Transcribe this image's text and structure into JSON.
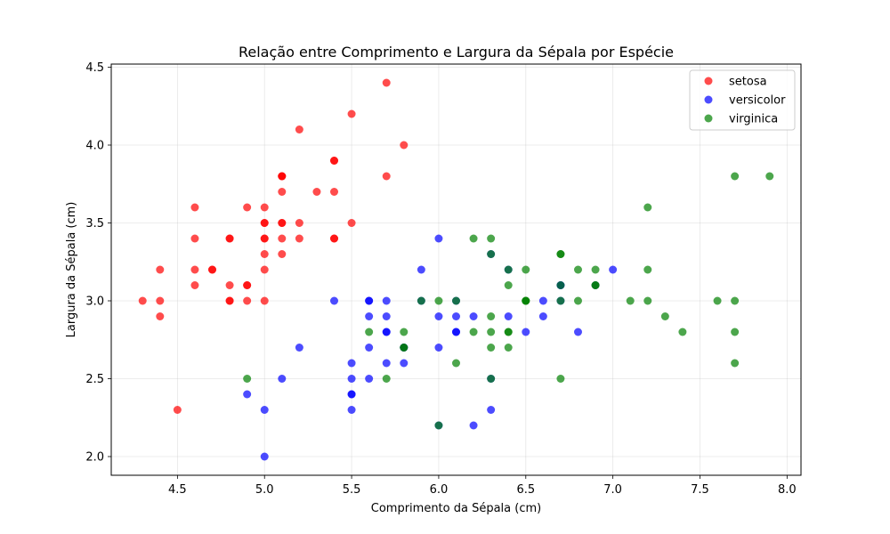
{
  "chart_data": {
    "type": "scatter",
    "title": "Relação entre Comprimento e Largura da Sépala por Espécie",
    "xlabel": "Comprimento da Sépala (cm)",
    "ylabel": "Largura da Sépala (cm)",
    "xlim": [
      4.12,
      8.08
    ],
    "ylim": [
      1.88,
      4.52
    ],
    "xticks": [
      "4.5",
      "5.0",
      "5.5",
      "6.0",
      "6.5",
      "7.0",
      "7.5",
      "8.0"
    ],
    "yticks": [
      "2.0",
      "2.5",
      "3.0",
      "3.5",
      "4.0",
      "4.5"
    ],
    "grid": true,
    "legend_position": "top-right",
    "series": [
      {
        "name": "setosa",
        "color": "#ff0000",
        "points": [
          [
            5.1,
            3.5
          ],
          [
            4.9,
            3.0
          ],
          [
            4.7,
            3.2
          ],
          [
            4.6,
            3.1
          ],
          [
            5.0,
            3.6
          ],
          [
            5.4,
            3.9
          ],
          [
            4.6,
            3.4
          ],
          [
            5.0,
            3.4
          ],
          [
            4.4,
            2.9
          ],
          [
            4.9,
            3.1
          ],
          [
            5.4,
            3.7
          ],
          [
            4.8,
            3.4
          ],
          [
            4.8,
            3.0
          ],
          [
            4.3,
            3.0
          ],
          [
            5.8,
            4.0
          ],
          [
            5.7,
            4.4
          ],
          [
            5.4,
            3.9
          ],
          [
            5.1,
            3.5
          ],
          [
            5.7,
            3.8
          ],
          [
            5.1,
            3.8
          ],
          [
            5.4,
            3.4
          ],
          [
            5.1,
            3.7
          ],
          [
            4.6,
            3.6
          ],
          [
            5.1,
            3.3
          ],
          [
            4.8,
            3.4
          ],
          [
            5.0,
            3.0
          ],
          [
            5.0,
            3.4
          ],
          [
            5.2,
            3.5
          ],
          [
            5.2,
            3.4
          ],
          [
            4.7,
            3.2
          ],
          [
            4.8,
            3.1
          ],
          [
            5.4,
            3.4
          ],
          [
            5.2,
            4.1
          ],
          [
            5.5,
            4.2
          ],
          [
            4.9,
            3.1
          ],
          [
            5.0,
            3.2
          ],
          [
            5.5,
            3.5
          ],
          [
            4.9,
            3.6
          ],
          [
            4.4,
            3.0
          ],
          [
            5.1,
            3.4
          ],
          [
            5.0,
            3.5
          ],
          [
            4.5,
            2.3
          ],
          [
            4.4,
            3.2
          ],
          [
            5.0,
            3.5
          ],
          [
            5.1,
            3.8
          ],
          [
            4.8,
            3.0
          ],
          [
            5.1,
            3.8
          ],
          [
            4.6,
            3.2
          ],
          [
            5.3,
            3.7
          ],
          [
            5.0,
            3.3
          ]
        ]
      },
      {
        "name": "versicolor",
        "color": "#0000ff",
        "points": [
          [
            7.0,
            3.2
          ],
          [
            6.4,
            3.2
          ],
          [
            6.9,
            3.1
          ],
          [
            5.5,
            2.3
          ],
          [
            6.5,
            2.8
          ],
          [
            5.7,
            2.8
          ],
          [
            6.3,
            3.3
          ],
          [
            4.9,
            2.4
          ],
          [
            6.6,
            2.9
          ],
          [
            5.2,
            2.7
          ],
          [
            5.0,
            2.0
          ],
          [
            5.9,
            3.0
          ],
          [
            6.0,
            2.2
          ],
          [
            6.1,
            2.9
          ],
          [
            5.6,
            2.9
          ],
          [
            6.7,
            3.1
          ],
          [
            5.6,
            3.0
          ],
          [
            5.8,
            2.7
          ],
          [
            6.2,
            2.2
          ],
          [
            5.6,
            2.5
          ],
          [
            5.9,
            3.2
          ],
          [
            6.1,
            2.8
          ],
          [
            6.3,
            2.5
          ],
          [
            6.1,
            2.8
          ],
          [
            6.4,
            2.9
          ],
          [
            6.6,
            3.0
          ],
          [
            6.8,
            2.8
          ],
          [
            6.7,
            3.0
          ],
          [
            6.0,
            2.9
          ],
          [
            5.7,
            2.6
          ],
          [
            5.5,
            2.4
          ],
          [
            5.5,
            2.4
          ],
          [
            5.8,
            2.7
          ],
          [
            6.0,
            2.7
          ],
          [
            5.4,
            3.0
          ],
          [
            6.0,
            3.4
          ],
          [
            6.7,
            3.1
          ],
          [
            6.3,
            2.3
          ],
          [
            5.6,
            3.0
          ],
          [
            5.5,
            2.5
          ],
          [
            5.5,
            2.6
          ],
          [
            6.1,
            3.0
          ],
          [
            5.8,
            2.6
          ],
          [
            5.0,
            2.3
          ],
          [
            5.6,
            2.7
          ],
          [
            5.7,
            3.0
          ],
          [
            5.7,
            2.9
          ],
          [
            6.2,
            2.9
          ],
          [
            5.1,
            2.5
          ],
          [
            5.7,
            2.8
          ]
        ]
      },
      {
        "name": "virginica",
        "color": "#008000",
        "points": [
          [
            6.3,
            3.3
          ],
          [
            5.8,
            2.7
          ],
          [
            7.1,
            3.0
          ],
          [
            6.3,
            2.9
          ],
          [
            6.5,
            3.0
          ],
          [
            7.6,
            3.0
          ],
          [
            4.9,
            2.5
          ],
          [
            7.3,
            2.9
          ],
          [
            6.7,
            2.5
          ],
          [
            7.2,
            3.6
          ],
          [
            6.5,
            3.2
          ],
          [
            6.4,
            2.7
          ],
          [
            6.8,
            3.0
          ],
          [
            5.7,
            2.5
          ],
          [
            5.8,
            2.8
          ],
          [
            6.4,
            3.2
          ],
          [
            6.5,
            3.0
          ],
          [
            7.7,
            3.8
          ],
          [
            7.7,
            2.6
          ],
          [
            6.0,
            2.2
          ],
          [
            6.9,
            3.2
          ],
          [
            5.6,
            2.8
          ],
          [
            7.7,
            2.8
          ],
          [
            6.3,
            2.7
          ],
          [
            6.7,
            3.3
          ],
          [
            7.2,
            3.2
          ],
          [
            6.2,
            2.8
          ],
          [
            6.1,
            3.0
          ],
          [
            6.4,
            2.8
          ],
          [
            7.2,
            3.0
          ],
          [
            7.4,
            2.8
          ],
          [
            7.9,
            3.8
          ],
          [
            6.4,
            2.8
          ],
          [
            6.3,
            2.8
          ],
          [
            6.1,
            2.6
          ],
          [
            7.7,
            3.0
          ],
          [
            6.3,
            3.4
          ],
          [
            6.4,
            3.1
          ],
          [
            6.0,
            3.0
          ],
          [
            6.9,
            3.1
          ],
          [
            6.7,
            3.1
          ],
          [
            6.9,
            3.1
          ],
          [
            5.8,
            2.7
          ],
          [
            6.8,
            3.2
          ],
          [
            6.7,
            3.3
          ],
          [
            6.7,
            3.0
          ],
          [
            6.3,
            2.5
          ],
          [
            6.5,
            3.0
          ],
          [
            6.2,
            3.4
          ],
          [
            5.9,
            3.0
          ]
        ]
      }
    ]
  }
}
